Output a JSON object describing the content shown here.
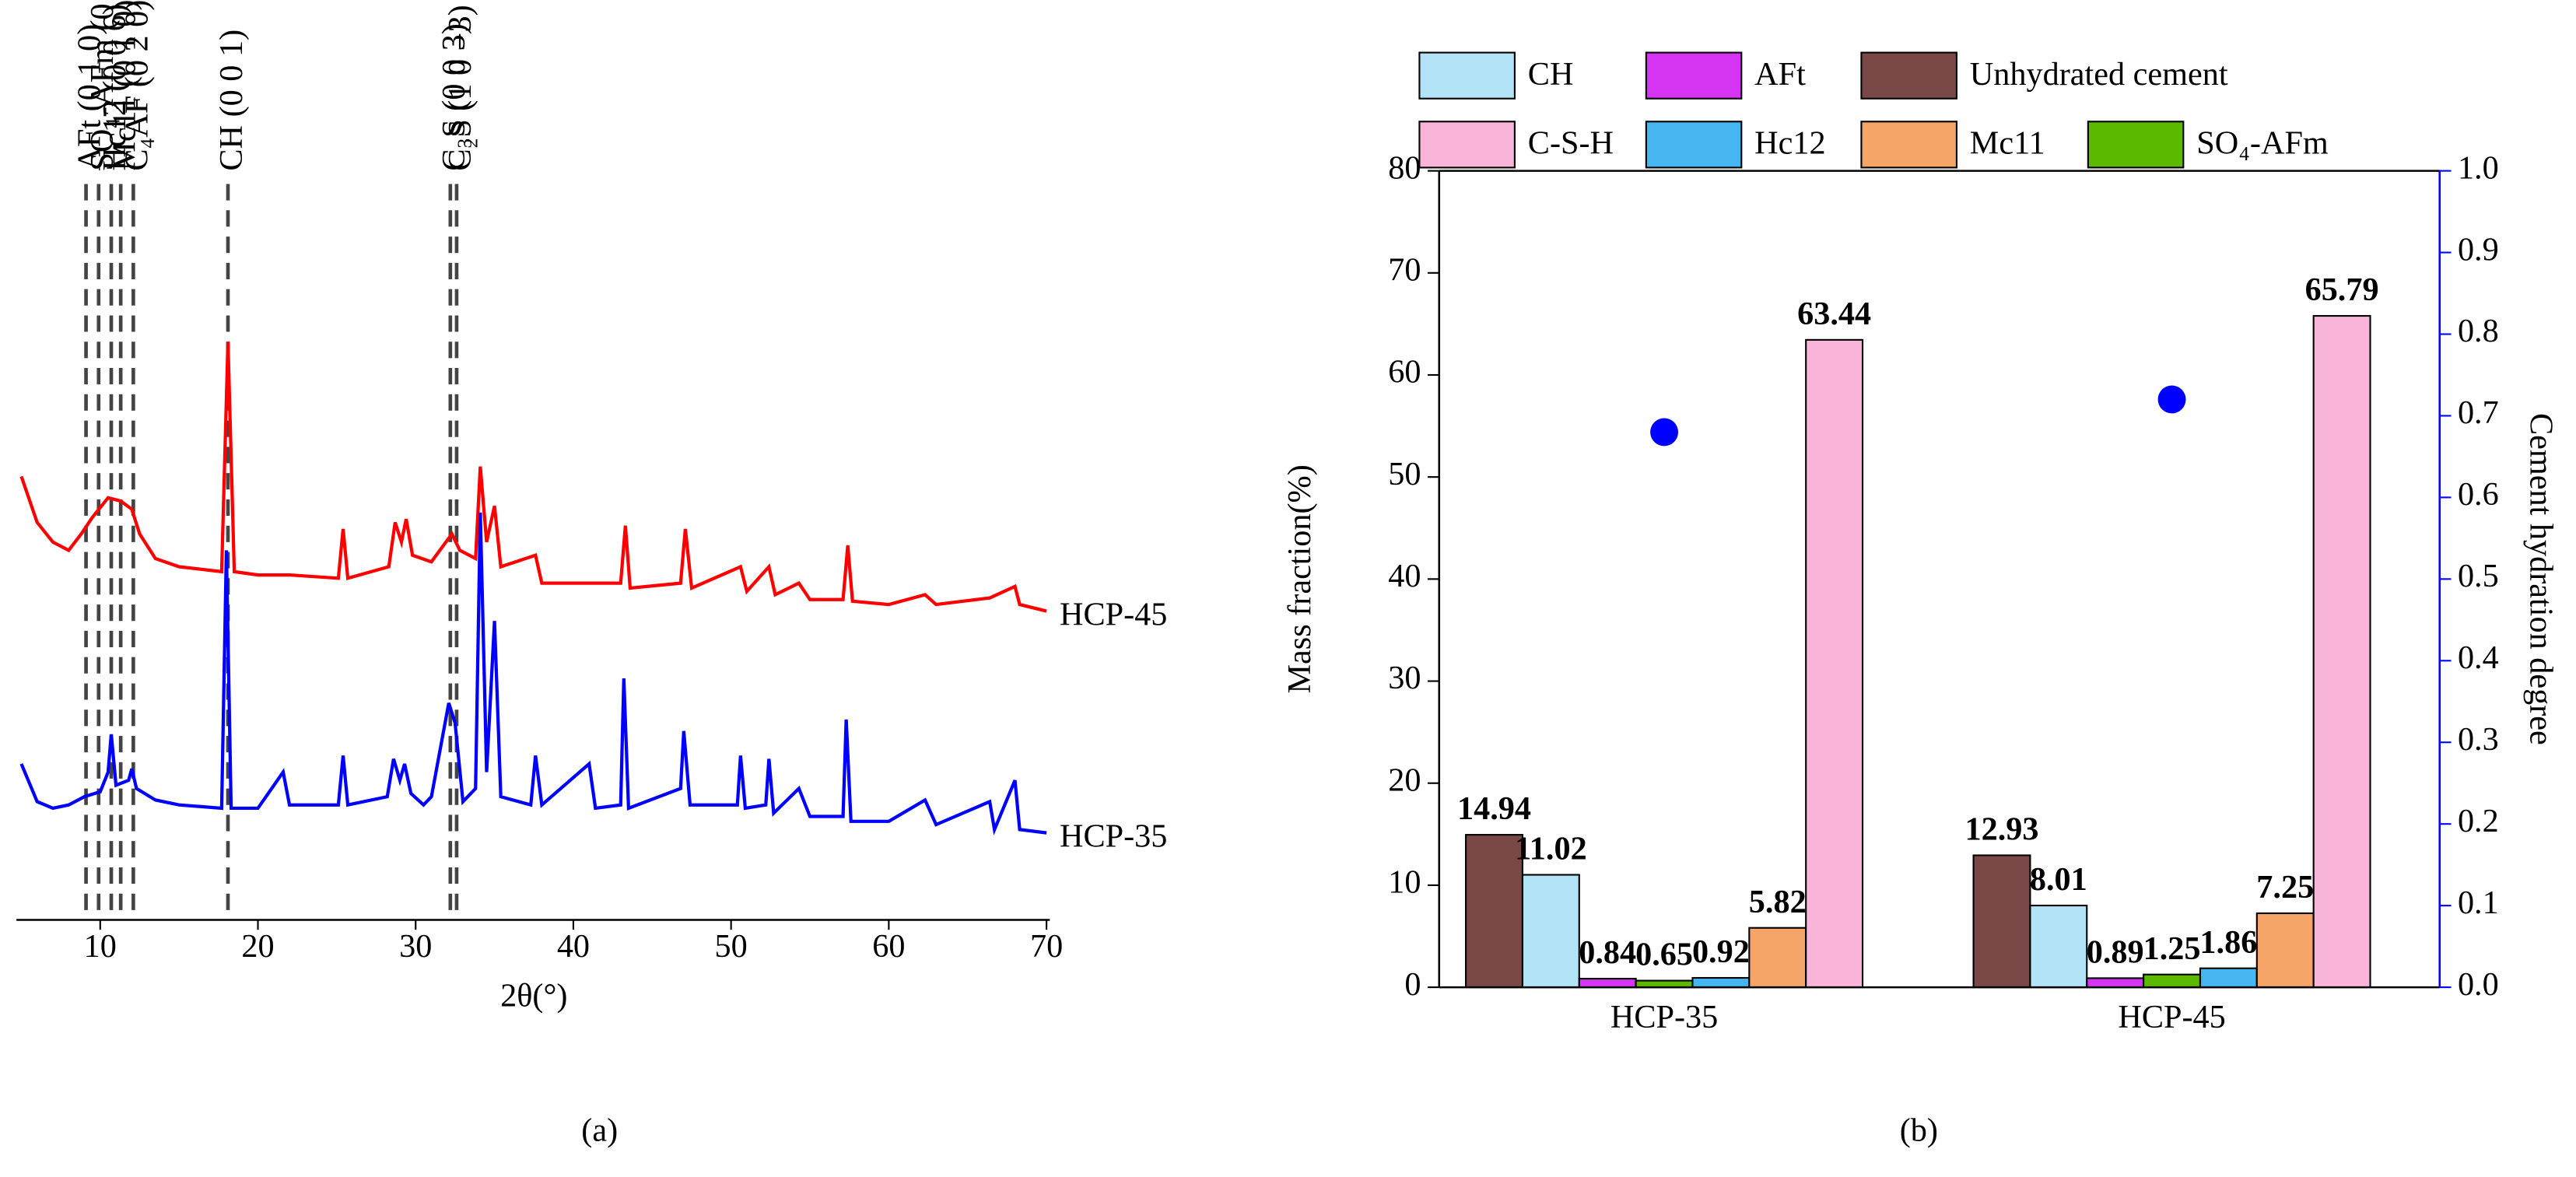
{
  "chart_data": [
    {
      "type": "line",
      "panel_label": "(a)",
      "xlabel": "2θ(°)",
      "xlim": [
        5,
        70
      ],
      "xticks": [
        10,
        20,
        30,
        40,
        50,
        60,
        70
      ],
      "annotations": [
        {
          "text": "AFt (0 1 0)",
          "x": 9.1
        },
        {
          "text": "SO₄-AFm (0 0 6)",
          "x": 9.9
        },
        {
          "text": "Hc12 (0 0 6)",
          "x": 10.7
        },
        {
          "text": "Mc11 (0 1 0)",
          "x": 11.3
        },
        {
          "text": "C₄AF (0 2 0)",
          "x": 12.1
        },
        {
          "text": "CH (0 0 1)",
          "x": 18.1
        },
        {
          "text": "C₃S (0 0 3)",
          "x": 32.2
        },
        {
          "text": "C₂S (1 0 −3)",
          "x": 32.6
        }
      ],
      "series": [
        {
          "name": "HCP-45",
          "color": "#ff0000",
          "x": [
            5,
            6,
            7,
            8,
            8.8,
            9.5,
            10.5,
            11.3,
            12,
            12.5,
            13.5,
            15,
            17.7,
            18.1,
            18.5,
            20,
            22,
            25.1,
            25.4,
            25.7,
            28.3,
            28.7,
            29.1,
            29.4,
            29.8,
            31,
            32.3,
            32.8,
            33.8,
            34.1,
            34.5,
            35,
            35.4,
            37.6,
            38,
            41,
            43,
            43.3,
            43.6,
            46.8,
            47.1,
            47.5,
            50.6,
            51,
            52.4,
            52.8,
            54.3,
            55,
            57.1,
            57.4,
            57.7,
            60,
            62.3,
            63,
            66.4,
            68,
            68.3,
            70
          ],
          "values": [
            270,
            242,
            230,
            225,
            235,
            245,
            257,
            255,
            250,
            235,
            220,
            215,
            212,
            352,
            212,
            210,
            210,
            208,
            238,
            208,
            215,
            242,
            230,
            244,
            222,
            218,
            235,
            225,
            220,
            276,
            230,
            252,
            215,
            222,
            205,
            205,
            205,
            240,
            202,
            205,
            238,
            202,
            215,
            200,
            215,
            198,
            205,
            195,
            195,
            228,
            194,
            192,
            198,
            192,
            196,
            203,
            192,
            188
          ]
        },
        {
          "name": "HCP-35",
          "color": "#0000ff",
          "x": [
            5,
            6,
            7,
            8,
            9,
            10,
            10.5,
            10.7,
            11,
            11.8,
            12,
            12.3,
            13.5,
            15,
            17.7,
            18,
            18.3,
            20,
            21.6,
            22,
            25.1,
            25.4,
            25.7,
            28.2,
            28.6,
            29,
            29.3,
            29.7,
            30.5,
            31,
            32.1,
            32.5,
            33,
            33.8,
            34.1,
            34.5,
            35,
            35.4,
            37.3,
            37.6,
            38,
            41,
            41.4,
            43,
            43.2,
            43.5,
            46.8,
            47,
            47.4,
            50.4,
            50.6,
            50.9,
            52.2,
            52.4,
            52.7,
            54.3,
            55,
            57.1,
            57.3,
            57.6,
            60,
            62.3,
            63,
            66.4,
            66.7,
            68,
            68.3,
            70
          ],
          "values": [
            95,
            72,
            68,
            70,
            75,
            78,
            90,
            113,
            82,
            85,
            92,
            80,
            73,
            70,
            68,
            225,
            68,
            68,
            90,
            70,
            70,
            100,
            70,
            75,
            98,
            85,
            95,
            77,
            70,
            75,
            132,
            120,
            72,
            80,
            248,
            90,
            182,
            75,
            70,
            100,
            70,
            95,
            68,
            70,
            147,
            68,
            80,
            115,
            70,
            70,
            100,
            68,
            70,
            98,
            65,
            80,
            63,
            63,
            122,
            60,
            60,
            73,
            58,
            72,
            55,
            85,
            55,
            53
          ]
        }
      ]
    },
    {
      "type": "bar",
      "panel_label": "(b)",
      "ylabel": "Mass fraction(%)",
      "y2label": "Cement hydration degree",
      "categories": [
        "HCP-35",
        "HCP-45"
      ],
      "ylim": [
        0,
        80
      ],
      "yticks": [
        0,
        10,
        20,
        30,
        40,
        50,
        60,
        70,
        80
      ],
      "y2lim": [
        0,
        1
      ],
      "y2ticks": [
        {
          "value": 0,
          "label": "0.0"
        },
        0.1,
        0.2,
        0.3,
        0.4,
        0.5,
        0.6,
        0.7,
        0.8,
        0.9,
        {
          "value": 1,
          "label": "1.0"
        }
      ],
      "series": [
        {
          "name": "Unhydrated cement",
          "color": "#7b4848",
          "values": [
            14.94,
            12.93
          ]
        },
        {
          "name": "CH",
          "color": "#b3e3f7",
          "values": [
            11.02,
            8.01
          ]
        },
        {
          "name": "AFt",
          "color": "#d535f2",
          "values": [
            0.84,
            0.89
          ]
        },
        {
          "name": "SO₄-AFm",
          "color": "#5db800",
          "values": [
            0.65,
            1.25
          ]
        },
        {
          "name": "Hc12",
          "color": "#45b6f0",
          "values": [
            0.92,
            1.86
          ]
        },
        {
          "name": "Mc11",
          "color": "#f5a567",
          "values": [
            5.82,
            7.25
          ]
        },
        {
          "name": "C-S-H",
          "color": "#f9b4da",
          "values": [
            63.44,
            65.79
          ]
        }
      ],
      "scatter": {
        "axis": "y2",
        "color": "#0000ff",
        "values": [
          0.68,
          0.72
        ]
      }
    }
  ]
}
